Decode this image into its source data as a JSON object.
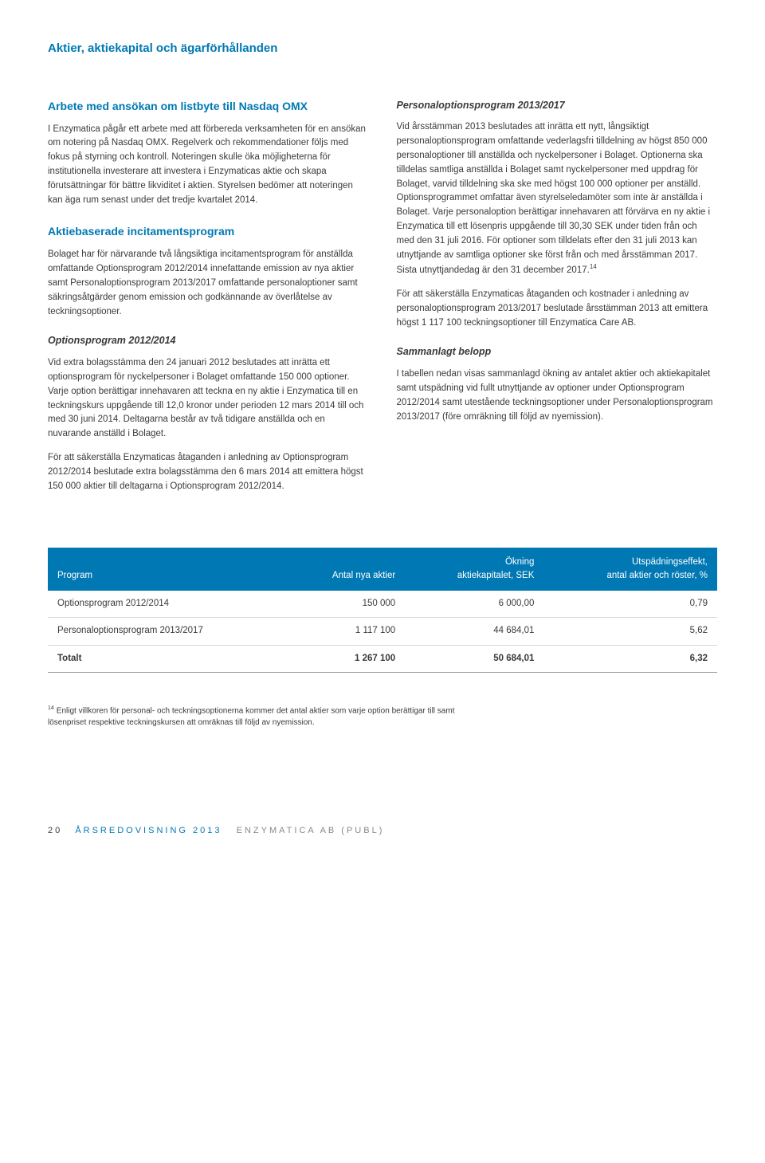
{
  "page_title": "Aktier, aktiekapital och ägarförhållanden",
  "left_column": {
    "sections": [
      {
        "heading": "Arbete med ansökan om listbyte till Nasdaq OMX",
        "paragraphs": [
          "I Enzymatica pågår ett arbete med att förbereda verksamheten för en ansökan om notering på Nasdaq OMX. Regelverk och rekommendationer följs med fokus på styrning och kontroll. Noteringen skulle öka möjligheterna för institutionella investerare att investera i Enzymaticas aktie och skapa förutsättningar för bättre likviditet i aktien. Styrelsen bedömer att noteringen kan äga rum senast under det tredje kvartalet 2014."
        ]
      },
      {
        "heading": "Aktiebaserade incitamentsprogram",
        "paragraphs": [
          "Bolaget har för närvarande två långsiktiga incitamentsprogram för anställda omfattande Optionsprogram 2012/2014 innefattande emission av nya aktier samt Personaloptionsprogram 2013/2017 omfattande personaloptioner samt säkringsåtgärder genom emission och godkännande av överlåtelse av teckningsoptioner."
        ]
      }
    ],
    "subsections": [
      {
        "subheading": "Optionsprogram 2012/2014",
        "paragraphs": [
          "Vid extra bolagsstämma den 24 januari 2012 beslutades att inrätta ett optionsprogram för nyckelpersoner i Bolaget omfattande 150 000 optioner. Varje option berättigar innehavaren att teckna en ny aktie i Enzymatica till en teckningskurs uppgående till 12,0 kronor under perioden 12 mars 2014 till och med 30 juni 2014. Deltagarna består av två tidigare anställda och en nuvarande anställd i Bolaget.",
          "För att säkerställa Enzymaticas åtaganden i anledning av Optionsprogram 2012/2014 beslutade extra bolagsstämma den 6 mars 2014 att emittera högst 150 000 aktier till deltagarna i Optionsprogram 2012/2014."
        ]
      }
    ]
  },
  "right_column": {
    "subsections": [
      {
        "subheading": "Personaloptionsprogram 2013/2017",
        "paragraphs": [
          "Vid årsstämman 2013 beslutades att inrätta ett nytt, långsiktigt personaloptionsprogram omfattande vederlagsfri tilldelning av högst 850 000 personaloptioner till anställda och nyckelpersoner i Bolaget. Optionerna ska tilldelas samtliga anställda i Bolaget samt nyckelpersoner med uppdrag för Bolaget, varvid tilldelning ska ske med högst 100 000 optioner per anställd. Optionsprogrammet omfattar även styrelseledamöter som inte är anställda i Bolaget. Varje personaloption berättigar innehavaren att förvärva en ny aktie i Enzymatica till ett lösenpris uppgående till 30,30 SEK under tiden från och med den 31 juli 2016. För optioner som tilldelats efter den 31 juli 2013 kan utnyttjande av samtliga optioner ske först från och med årsstämman 2017. Sista utnyttjandedag är den 31 december 2017.",
          "För att säkerställa Enzymaticas åtaganden och kostnader i anledning av personaloptionsprogram 2013/2017 beslutade årsstämman 2013 att emittera högst 1 117 100 teckningsoptioner till Enzymatica Care AB."
        ],
        "footnote_ref": "14"
      },
      {
        "subheading": "Sammanlagt belopp",
        "paragraphs": [
          "I tabellen nedan visas sammanlagd ökning av antalet aktier och aktiekapitalet samt utspädning vid fullt utnyttjande av optioner under Optionsprogram 2012/2014 samt utestående teckningsoptioner under Personaloptionsprogram 2013/2017 (före omräkning till följd av nyemission)."
        ]
      }
    ]
  },
  "table": {
    "header_bg": "#0078b3",
    "header_color": "#ffffff",
    "columns": [
      {
        "label": "Program",
        "align": "left"
      },
      {
        "label": "Antal nya aktier",
        "align": "right"
      },
      {
        "label_line1": "Ökning",
        "label_line2": "aktiekapitalet, SEK",
        "align": "right"
      },
      {
        "label_line1": "Utspädningseffekt,",
        "label_line2": "antal aktier och röster, %",
        "align": "right"
      }
    ],
    "rows": [
      [
        "Optionsprogram 2012/2014",
        "150 000",
        "6 000,00",
        "0,79"
      ],
      [
        "Personaloptionsprogram 2013/2017",
        "1 117 100",
        "44 684,01",
        "5,62"
      ]
    ],
    "total_row": [
      "Totalt",
      "1 267 100",
      "50 684,01",
      "6,32"
    ]
  },
  "footnote": {
    "ref": "14",
    "text": "Enligt villkoren för personal- och teckningsoptionerna kommer det antal aktier som varje option berättigar till samt lösenpriset respektive teckningskursen att omräknas till följd av nyemission."
  },
  "footer": {
    "page_number": "20",
    "blue_text": "ÅRSREDOVISNING 2013",
    "gray_text": "ENZYMATICA AB (PUBL)"
  }
}
